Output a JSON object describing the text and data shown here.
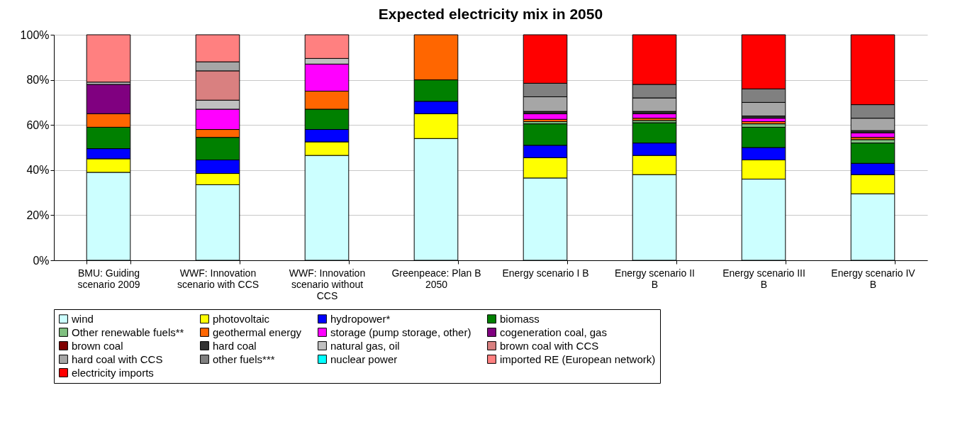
{
  "chart_data": {
    "type": "bar",
    "stacked": true,
    "title": "Expected electricity mix in 2050",
    "categories": [
      "BMU: Guiding scenario 2009",
      "WWF: Innovation scenario with CCS",
      "WWF: Innovation scenario without CCS",
      "Greenpeace: Plan B 2050",
      "Energy scenario I B",
      "Energy scenario II B",
      "Energy scenario III B",
      "Energy scenario IV B"
    ],
    "ylim": [
      0,
      100
    ],
    "yticks": [
      {
        "value": 0,
        "label": "0%"
      },
      {
        "value": 20,
        "label": "20%"
      },
      {
        "value": 40,
        "label": "40%"
      },
      {
        "value": 60,
        "label": "60%"
      },
      {
        "value": 80,
        "label": "80%"
      },
      {
        "value": 100,
        "label": "100%"
      }
    ],
    "grid": "y",
    "legend": "bottom",
    "series": [
      {
        "name": "wind",
        "color": "#ccffff",
        "values": [
          39,
          33.5,
          46.5,
          54,
          36.5,
          38,
          36,
          29.5
        ]
      },
      {
        "name": "photovoltaic",
        "color": "#ffff00",
        "values": [
          6,
          5,
          6,
          11,
          9,
          8.5,
          8.5,
          8.5
        ]
      },
      {
        "name": "hydropower*",
        "color": "#0000ff",
        "values": [
          4.5,
          6,
          5.5,
          5.5,
          5.5,
          5.5,
          5.5,
          5
        ]
      },
      {
        "name": "biomass",
        "color": "#008000",
        "values": [
          9.5,
          10,
          9,
          9.5,
          9.5,
          9,
          9,
          9
        ]
      },
      {
        "name": "Other renewable fuels**",
        "color": "#80c080",
        "values": [
          null,
          null,
          null,
          null,
          1,
          1,
          1.5,
          1.5
        ]
      },
      {
        "name": "geothermal energy",
        "color": "#ff6600",
        "values": [
          6,
          3.5,
          8,
          20,
          1,
          1,
          1,
          1
        ]
      },
      {
        "name": "storage (pump storage, other)",
        "color": "#ff00ff",
        "values": [
          null,
          9,
          12,
          null,
          2.5,
          2,
          1.5,
          2
        ]
      },
      {
        "name": "cogeneration coal, gas",
        "color": "#800080",
        "values": [
          13,
          null,
          null,
          null,
          null,
          null,
          null,
          null
        ]
      },
      {
        "name": "brown coal",
        "color": "#800000",
        "values": [
          null,
          null,
          null,
          null,
          null,
          null,
          null,
          null
        ]
      },
      {
        "name": "hard coal",
        "color": "#333333",
        "values": [
          null,
          null,
          null,
          null,
          1,
          1,
          1,
          1
        ]
      },
      {
        "name": "natural gas, oil",
        "color": "#c0c0c0",
        "values": [
          1,
          4,
          2.5,
          null,
          null,
          null,
          null,
          null
        ]
      },
      {
        "name": "brown coal with CCS",
        "color": "#d98080",
        "values": [
          null,
          13,
          null,
          null,
          null,
          null,
          null,
          null
        ]
      },
      {
        "name": "hard coal with CCS",
        "color": "#a6a6a6",
        "values": [
          null,
          4,
          null,
          null,
          6.5,
          6,
          6,
          5.5
        ]
      },
      {
        "name": "other fuels***",
        "color": "#808080",
        "values": [
          null,
          null,
          null,
          null,
          6,
          6,
          6,
          6
        ]
      },
      {
        "name": "nuclear power",
        "color": "#00ffff",
        "values": [
          null,
          null,
          null,
          null,
          null,
          null,
          null,
          null
        ]
      },
      {
        "name": "imported RE (European network)",
        "color": "#ff8080",
        "values": [
          21,
          12,
          10.5,
          null,
          null,
          null,
          null,
          null
        ]
      },
      {
        "name": "electricity imports",
        "color": "#ff0000",
        "values": [
          null,
          null,
          null,
          null,
          21.5,
          22,
          24,
          31
        ]
      }
    ]
  }
}
